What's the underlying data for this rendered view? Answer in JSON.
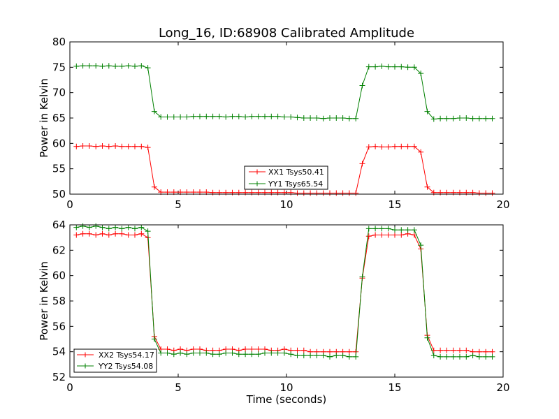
{
  "chart_data": [
    {
      "type": "line",
      "title": "Long_16, ID:68908 Calibrated Amplitude",
      "xlabel": "",
      "ylabel": "Power in Kelvin",
      "xlim": [
        0,
        20
      ],
      "ylim": [
        50,
        80
      ],
      "xticks": [
        "0",
        "5",
        "10",
        "15",
        "20"
      ],
      "yticks": [
        "50",
        "55",
        "60",
        "65",
        "70",
        "75",
        "80"
      ],
      "xtick_values": [
        0,
        5,
        10,
        15,
        20
      ],
      "ytick_values": [
        50,
        55,
        60,
        65,
        70,
        75,
        80
      ],
      "grid": false,
      "legend_position": "lower-center",
      "x": [
        0.3,
        0.6,
        0.9,
        1.2,
        1.5,
        1.8,
        2.1,
        2.4,
        2.7,
        3.0,
        3.3,
        3.6,
        3.9,
        4.2,
        4.5,
        4.8,
        5.1,
        5.4,
        5.7,
        6.0,
        6.3,
        6.6,
        6.9,
        7.2,
        7.5,
        7.8,
        8.1,
        8.4,
        8.7,
        9.0,
        9.3,
        9.6,
        9.9,
        10.2,
        10.5,
        10.8,
        11.1,
        11.4,
        11.7,
        12.0,
        12.3,
        12.6,
        12.9,
        13.2,
        13.5,
        13.8,
        14.1,
        14.4,
        14.7,
        15.0,
        15.3,
        15.6,
        15.9,
        16.2,
        16.5,
        16.8,
        17.1,
        17.4,
        17.7,
        18.0,
        18.3,
        18.6,
        18.9,
        19.2,
        19.5
      ],
      "series": [
        {
          "name": "XX1 Tsys50.41",
          "color": "#ff0000",
          "values": [
            59.4,
            59.5,
            59.5,
            59.4,
            59.5,
            59.4,
            59.5,
            59.4,
            59.4,
            59.4,
            59.4,
            59.2,
            51.4,
            50.4,
            50.4,
            50.4,
            50.4,
            50.4,
            50.4,
            50.4,
            50.4,
            50.3,
            50.3,
            50.3,
            50.3,
            50.3,
            50.3,
            50.3,
            50.3,
            50.3,
            50.3,
            50.3,
            50.3,
            50.3,
            50.2,
            50.2,
            50.2,
            50.2,
            50.2,
            50.2,
            50.2,
            50.2,
            50.2,
            50.2,
            56.0,
            59.3,
            59.4,
            59.3,
            59.3,
            59.4,
            59.4,
            59.4,
            59.4,
            58.3,
            51.4,
            50.3,
            50.3,
            50.3,
            50.3,
            50.3,
            50.3,
            50.3,
            50.2,
            50.2,
            50.2
          ]
        },
        {
          "name": "YY1 Tsys65.54",
          "color": "#008000",
          "values": [
            75.2,
            75.3,
            75.3,
            75.3,
            75.2,
            75.3,
            75.2,
            75.2,
            75.3,
            75.2,
            75.3,
            74.9,
            66.3,
            65.2,
            65.2,
            65.2,
            65.2,
            65.2,
            65.3,
            65.3,
            65.3,
            65.3,
            65.3,
            65.2,
            65.3,
            65.3,
            65.2,
            65.3,
            65.3,
            65.3,
            65.3,
            65.3,
            65.2,
            65.2,
            65.1,
            65.0,
            65.0,
            65.0,
            64.9,
            65.0,
            65.0,
            65.0,
            64.9,
            64.9,
            71.4,
            75.1,
            75.1,
            75.2,
            75.1,
            75.1,
            75.1,
            75.0,
            75.0,
            73.8,
            66.3,
            64.8,
            64.9,
            64.9,
            64.9,
            65.0,
            65.0,
            64.9,
            64.9,
            64.9,
            64.9
          ]
        }
      ]
    },
    {
      "type": "line",
      "title": "",
      "xlabel": "Time (seconds)",
      "ylabel": "Power in Kelvin",
      "xlim": [
        0,
        20
      ],
      "ylim": [
        52,
        64
      ],
      "xticks": [
        "0",
        "5",
        "10",
        "15",
        "20"
      ],
      "yticks": [
        "52",
        "54",
        "56",
        "58",
        "60",
        "62",
        "64"
      ],
      "xtick_values": [
        0,
        5,
        10,
        15,
        20
      ],
      "ytick_values": [
        52,
        54,
        56,
        58,
        60,
        62,
        64
      ],
      "grid": false,
      "legend_position": "lower-left",
      "x": [
        0.3,
        0.6,
        0.9,
        1.2,
        1.5,
        1.8,
        2.1,
        2.4,
        2.7,
        3.0,
        3.3,
        3.6,
        3.9,
        4.2,
        4.5,
        4.8,
        5.1,
        5.4,
        5.7,
        6.0,
        6.3,
        6.6,
        6.9,
        7.2,
        7.5,
        7.8,
        8.1,
        8.4,
        8.7,
        9.0,
        9.3,
        9.6,
        9.9,
        10.2,
        10.5,
        10.8,
        11.1,
        11.4,
        11.7,
        12.0,
        12.3,
        12.6,
        12.9,
        13.2,
        13.5,
        13.8,
        14.1,
        14.4,
        14.7,
        15.0,
        15.3,
        15.6,
        15.9,
        16.2,
        16.5,
        16.8,
        17.1,
        17.4,
        17.7,
        18.0,
        18.3,
        18.6,
        18.9,
        19.2,
        19.5
      ],
      "series": [
        {
          "name": "XX2 Tsys54.17",
          "color": "#ff0000",
          "values": [
            63.2,
            63.3,
            63.3,
            63.2,
            63.3,
            63.2,
            63.3,
            63.3,
            63.2,
            63.2,
            63.3,
            63.0,
            55.2,
            54.2,
            54.2,
            54.1,
            54.2,
            54.1,
            54.2,
            54.2,
            54.1,
            54.1,
            54.1,
            54.2,
            54.2,
            54.1,
            54.2,
            54.2,
            54.2,
            54.2,
            54.1,
            54.1,
            54.2,
            54.1,
            54.1,
            54.1,
            54.0,
            54.0,
            54.0,
            54.0,
            54.0,
            54.0,
            54.0,
            54.0,
            59.8,
            63.1,
            63.2,
            63.2,
            63.2,
            63.2,
            63.2,
            63.3,
            63.2,
            62.1,
            55.3,
            54.1,
            54.1,
            54.1,
            54.1,
            54.1,
            54.1,
            54.0,
            54.0,
            54.0,
            54.0
          ]
        },
        {
          "name": "YY2 Tsys54.08",
          "color": "#008000",
          "values": [
            63.8,
            63.9,
            63.8,
            63.9,
            63.8,
            63.7,
            63.8,
            63.7,
            63.8,
            63.7,
            63.8,
            63.5,
            55.0,
            53.9,
            53.9,
            53.8,
            53.9,
            53.8,
            53.9,
            53.9,
            53.9,
            53.8,
            53.8,
            53.9,
            53.9,
            53.8,
            53.8,
            53.8,
            53.8,
            53.9,
            53.9,
            53.9,
            53.9,
            53.8,
            53.7,
            53.7,
            53.7,
            53.7,
            53.7,
            53.6,
            53.7,
            53.7,
            53.6,
            53.6,
            59.9,
            63.7,
            63.7,
            63.7,
            63.7,
            63.6,
            63.6,
            63.6,
            63.6,
            62.4,
            55.1,
            53.7,
            53.6,
            53.6,
            53.6,
            53.6,
            53.6,
            53.7,
            53.6,
            53.6,
            53.6
          ]
        }
      ]
    }
  ]
}
